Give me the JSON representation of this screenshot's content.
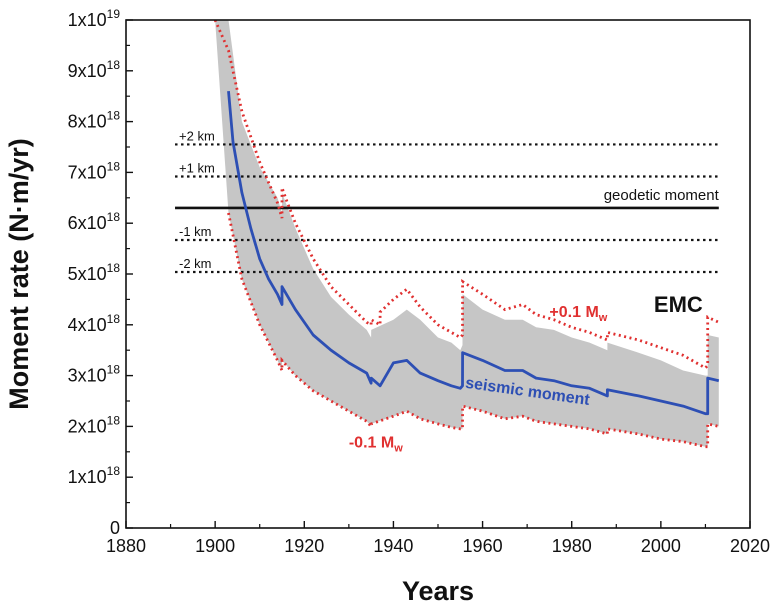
{
  "chart_data": {
    "type": "line",
    "xlabel": "Years",
    "ylabel": "Moment rate (N·m/yr)",
    "xlim": [
      1880,
      2020
    ],
    "ylim": [
      0,
      1e+19
    ],
    "x_ticks": [
      "1880",
      "1900",
      "1920",
      "1940",
      "1960",
      "1980",
      "2000",
      "2020"
    ],
    "y_ticks": [
      {
        "value": 0,
        "mant": "0",
        "exp": ""
      },
      {
        "value": 1e+18,
        "mant": "1x10",
        "exp": "18"
      },
      {
        "value": 2e+18,
        "mant": "2x10",
        "exp": "18"
      },
      {
        "value": 3e+18,
        "mant": "3x10",
        "exp": "18"
      },
      {
        "value": 4e+18,
        "mant": "4x10",
        "exp": "18"
      },
      {
        "value": 5e+18,
        "mant": "5x10",
        "exp": "18"
      },
      {
        "value": 6e+18,
        "mant": "6x10",
        "exp": "18"
      },
      {
        "value": 7e+18,
        "mant": "7x10",
        "exp": "18"
      },
      {
        "value": 8e+18,
        "mant": "8x10",
        "exp": "18"
      },
      {
        "value": 9e+18,
        "mant": "9x10",
        "exp": "18"
      },
      {
        "value": 1e+19,
        "mant": "1x10",
        "exp": "19"
      }
    ],
    "grid": false,
    "colors": {
      "seismic": "#2d4fb4",
      "bounds": "#e03030",
      "band": "#c6c6c6",
      "geodetic": "#111111"
    },
    "geodetic_moment": {
      "label": "geodetic moment",
      "x": [
        1891,
        2013
      ],
      "y": 6.3e+18
    },
    "depth_lines": [
      {
        "label": "+2 km",
        "x": [
          1891,
          2013
        ],
        "y": 7.55e+18
      },
      {
        "label": "+1 km",
        "x": [
          1891,
          2013
        ],
        "y": 6.92e+18
      },
      {
        "label": "-1 km",
        "x": [
          1891,
          2013
        ],
        "y": 5.67e+18
      },
      {
        "label": "-2 km",
        "x": [
          1891,
          2013
        ],
        "y": 5.04e+18
      }
    ],
    "seismic_moment": {
      "label": "seismic moment",
      "x": [
        1903,
        1904,
        1906,
        1908,
        1910,
        1912,
        1914,
        1915,
        1915.01,
        1918,
        1922,
        1926,
        1930,
        1934,
        1935,
        1935.01,
        1937,
        1940,
        1943,
        1946,
        1950,
        1953,
        1955,
        1955.5,
        1955.51,
        1960,
        1965,
        1969,
        1972,
        1976,
        1980,
        1984,
        1988,
        1988.01,
        1995,
        2000,
        2005,
        2010,
        2010.5,
        2010.51,
        2013
      ],
      "y": [
        8.6e+18,
        7.6e+18,
        6.6e+18,
        5.9e+18,
        5.3e+18,
        4.9e+18,
        4.6e+18,
        4.4e+18,
        4.75e+18,
        4.3e+18,
        3.8e+18,
        3.5e+18,
        3.25e+18,
        3.05e+18,
        2.85e+18,
        2.95e+18,
        2.8e+18,
        3.25e+18,
        3.3e+18,
        3.05e+18,
        2.9e+18,
        2.8e+18,
        2.75e+18,
        2.8e+18,
        3.45e+18,
        3.3e+18,
        3.1e+18,
        3.1e+18,
        2.95e+18,
        2.9e+18,
        2.8e+18,
        2.75e+18,
        2.6e+18,
        2.72e+18,
        2.6e+18,
        2.5e+18,
        2.4e+18,
        2.25e+18,
        2.25e+18,
        2.95e+18,
        2.9e+18
      ]
    },
    "upper_bound": {
      "label": "+0.1 M",
      "label_sub": "w",
      "x": [
        1900,
        1903,
        1906,
        1910,
        1914,
        1915,
        1915.01,
        1916,
        1918,
        1922,
        1926,
        1930,
        1934,
        1935,
        1935.01,
        1937,
        1937.01,
        1940,
        1943,
        1946,
        1950,
        1953,
        1955,
        1955.5,
        1955.51,
        1960,
        1965,
        1969,
        1972,
        1976,
        1980,
        1984,
        1988,
        1988.01,
        1995,
        2000,
        2005,
        2010,
        2010.5,
        2010.51,
        2013
      ],
      "y": [
        1e+19,
        9.4e+18,
        8.2e+18,
        7.2e+18,
        6.4e+18,
        6.1e+18,
        6.7e+18,
        6.45e+18,
        6e+18,
        5.3e+18,
        4.75e+18,
        4.4e+18,
        4.05e+18,
        4e+18,
        4.1e+18,
        4e+18,
        4.25e+18,
        4.5e+18,
        4.7e+18,
        4.35e+18,
        4e+18,
        3.85e+18,
        3.75e+18,
        3.8e+18,
        4.85e+18,
        4.6e+18,
        4.3e+18,
        4.4e+18,
        4.2e+18,
        4.1e+18,
        3.95e+18,
        3.85e+18,
        3.7e+18,
        3.85e+18,
        3.7e+18,
        3.55e+18,
        3.4e+18,
        3.15e+18,
        3.2e+18,
        4.15e+18,
        4.05e+18
      ]
    },
    "lower_bound": {
      "label": "-0.1 M",
      "label_sub": "w",
      "x": [
        1903,
        1906,
        1910,
        1914,
        1915,
        1915.01,
        1918,
        1922,
        1926,
        1930,
        1934,
        1935,
        1935.01,
        1940,
        1943,
        1946,
        1950,
        1953,
        1955,
        1955.5,
        1955.51,
        1960,
        1965,
        1969,
        1972,
        1976,
        1980,
        1984,
        1988,
        1988.01,
        1995,
        2000,
        2005,
        2010,
        2010.5,
        2010.51,
        2013
      ],
      "y": [
        6.2e+18,
        4.9e+18,
        4e+18,
        3.3e+18,
        3.1e+18,
        3.3e+18,
        3e+18,
        2.7e+18,
        2.5e+18,
        2.3e+18,
        2.1e+18,
        2e+18,
        2.05e+18,
        2.2e+18,
        2.3e+18,
        2.15e+18,
        2.05e+18,
        1.98e+18,
        1.95e+18,
        1.95e+18,
        2.4e+18,
        2.3e+18,
        2.15e+18,
        2.2e+18,
        2.1e+18,
        2.05e+18,
        2e+18,
        1.95e+18,
        1.85e+18,
        1.95e+18,
        1.85e+18,
        1.75e+18,
        1.7e+18,
        1.6e+18,
        1.6e+18,
        2.05e+18,
        2e+18
      ]
    },
    "shaded_band": {
      "x": [
        1900,
        1903,
        1906,
        1910,
        1914,
        1915,
        1915.01,
        1918,
        1922,
        1926,
        1930,
        1934,
        1935,
        1935.01,
        1940,
        1943,
        1946,
        1950,
        1953,
        1955,
        1955.5,
        1955.51,
        1960,
        1965,
        1969,
        1972,
        1976,
        1980,
        1984,
        1988,
        1988.01,
        1995,
        2000,
        2005,
        2010,
        2010.5,
        2010.51,
        2013
      ],
      "upper": [
        1e+19,
        1e+19,
        8e+18,
        7.1e+18,
        6.5e+18,
        6.2e+18,
        6.6e+18,
        5.9e+18,
        5.1e+18,
        4.55e+18,
        4.2e+18,
        3.9e+18,
        3.75e+18,
        3.9e+18,
        4.1e+18,
        4.3e+18,
        4.1e+18,
        3.75e+18,
        3.65e+18,
        3.5e+18,
        3.6e+18,
        4.6e+18,
        4.3e+18,
        4.1e+18,
        4.1e+18,
        3.95e+18,
        3.9e+18,
        3.75e+18,
        3.65e+18,
        3.5e+18,
        3.65e+18,
        3.45e+18,
        3.3e+18,
        3.1e+18,
        3e+18,
        3e+18,
        3.8e+18,
        3.75e+18
      ],
      "lower": [
        1e+19,
        6.2e+18,
        4.9e+18,
        4e+18,
        3.3e+18,
        3.1e+18,
        3.3e+18,
        3e+18,
        2.7e+18,
        2.5e+18,
        2.3e+18,
        2.1e+18,
        2e+18,
        2.05e+18,
        2.2e+18,
        2.3e+18,
        2.15e+18,
        2.05e+18,
        1.98e+18,
        1.95e+18,
        1.95e+18,
        2.4e+18,
        2.3e+18,
        2.15e+18,
        2.2e+18,
        2.1e+18,
        2.05e+18,
        2e+18,
        1.95e+18,
        1.85e+18,
        1.95e+18,
        1.85e+18,
        1.75e+18,
        1.7e+18,
        1.6e+18,
        1.6e+18,
        2.05e+18,
        2e+18
      ]
    },
    "annotations": {
      "region": "EMC"
    }
  }
}
